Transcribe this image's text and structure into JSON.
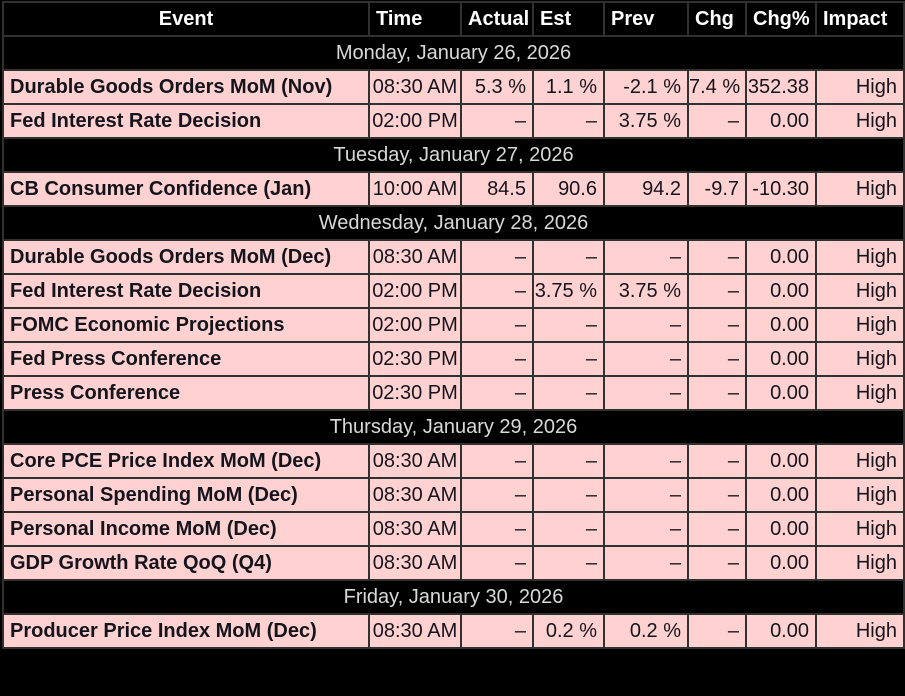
{
  "colors": {
    "page_background": "#000000",
    "header_background": "#000000",
    "header_text": "#ffffff",
    "day_header_text": "#d9d9d9",
    "row_background": "#ffd1d1",
    "row_text": "#14141d",
    "grid_border": "#313131"
  },
  "table": {
    "columns": [
      {
        "key": "event",
        "label": "Event"
      },
      {
        "key": "time",
        "label": "Time"
      },
      {
        "key": "actual",
        "label": "Actual"
      },
      {
        "key": "est",
        "label": "Est"
      },
      {
        "key": "prev",
        "label": "Prev"
      },
      {
        "key": "chg",
        "label": "Chg"
      },
      {
        "key": "chg_pct",
        "label": "Chg%"
      },
      {
        "key": "impact",
        "label": "Impact"
      }
    ],
    "sections": [
      {
        "date": "Monday, January 26, 2026",
        "rows": [
          {
            "event": "Durable Goods Orders MoM (Nov)",
            "time": "08:30 AM",
            "actual": "5.3 %",
            "est": "1.1 %",
            "prev": "-2.1 %",
            "chg": "7.4 %",
            "chg_pct": "352.38",
            "impact": "High"
          },
          {
            "event": "Fed Interest Rate Decision",
            "time": "02:00 PM",
            "actual": "–",
            "est": "–",
            "prev": "3.75 %",
            "chg": "–",
            "chg_pct": "0.00",
            "impact": "High"
          }
        ]
      },
      {
        "date": "Tuesday, January 27, 2026",
        "rows": [
          {
            "event": "CB Consumer Confidence (Jan)",
            "time": "10:00 AM",
            "actual": "84.5",
            "est": "90.6",
            "prev": "94.2",
            "chg": "-9.7",
            "chg_pct": "-10.30",
            "impact": "High"
          }
        ]
      },
      {
        "date": "Wednesday, January 28, 2026",
        "rows": [
          {
            "event": "Durable Goods Orders MoM (Dec)",
            "time": "08:30 AM",
            "actual": "–",
            "est": "–",
            "prev": "–",
            "chg": "–",
            "chg_pct": "0.00",
            "impact": "High"
          },
          {
            "event": "Fed Interest Rate Decision",
            "time": "02:00 PM",
            "actual": "–",
            "est": "3.75 %",
            "prev": "3.75 %",
            "chg": "–",
            "chg_pct": "0.00",
            "impact": "High"
          },
          {
            "event": "FOMC Economic Projections",
            "time": "02:00 PM",
            "actual": "–",
            "est": "–",
            "prev": "–",
            "chg": "–",
            "chg_pct": "0.00",
            "impact": "High"
          },
          {
            "event": "Fed Press Conference",
            "time": "02:30 PM",
            "actual": "–",
            "est": "–",
            "prev": "–",
            "chg": "–",
            "chg_pct": "0.00",
            "impact": "High"
          },
          {
            "event": "Press Conference",
            "time": "02:30 PM",
            "actual": "–",
            "est": "–",
            "prev": "–",
            "chg": "–",
            "chg_pct": "0.00",
            "impact": "High"
          }
        ]
      },
      {
        "date": "Thursday, January 29, 2026",
        "rows": [
          {
            "event": "Core PCE Price Index MoM (Dec)",
            "time": "08:30 AM",
            "actual": "–",
            "est": "–",
            "prev": "–",
            "chg": "–",
            "chg_pct": "0.00",
            "impact": "High"
          },
          {
            "event": "Personal Spending MoM (Dec)",
            "time": "08:30 AM",
            "actual": "–",
            "est": "–",
            "prev": "–",
            "chg": "–",
            "chg_pct": "0.00",
            "impact": "High"
          },
          {
            "event": "Personal Income MoM (Dec)",
            "time": "08:30 AM",
            "actual": "–",
            "est": "–",
            "prev": "–",
            "chg": "–",
            "chg_pct": "0.00",
            "impact": "High"
          },
          {
            "event": "GDP Growth Rate QoQ (Q4)",
            "time": "08:30 AM",
            "actual": "–",
            "est": "–",
            "prev": "–",
            "chg": "–",
            "chg_pct": "0.00",
            "impact": "High"
          }
        ]
      },
      {
        "date": "Friday, January 30, 2026",
        "rows": [
          {
            "event": "Producer Price Index MoM (Dec)",
            "time": "08:30 AM",
            "actual": "–",
            "est": "0.2 %",
            "prev": "0.2 %",
            "chg": "–",
            "chg_pct": "0.00",
            "impact": "High"
          }
        ]
      }
    ]
  }
}
